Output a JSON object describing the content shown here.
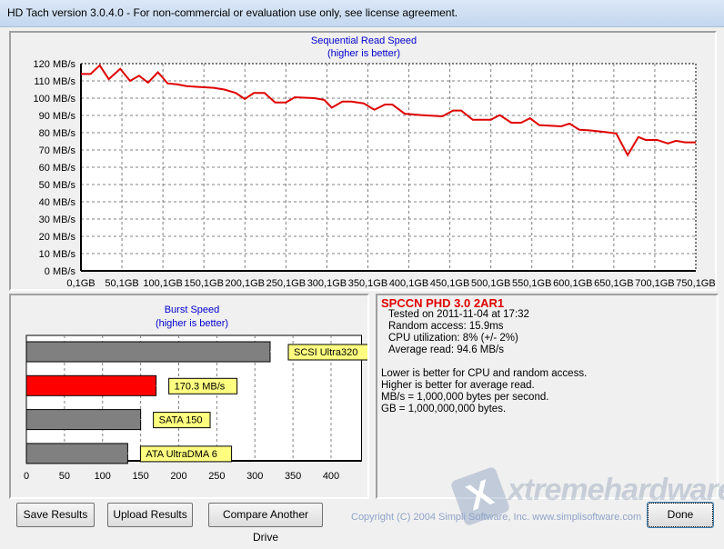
{
  "window": {
    "title": "HD Tach version 3.0.4.0  - For non-commercial or evaluation use only, see license agreement."
  },
  "chart_data": [
    {
      "type": "line",
      "title": "Sequential Read Speed",
      "subtitle": "(higher is better)",
      "ylim": [
        0,
        120
      ],
      "xlim": [
        0.1,
        750.1
      ],
      "yticks": [
        "0 MB/s",
        "10 MB/s",
        "20 MB/s",
        "30 MB/s",
        "40 MB/s",
        "50 MB/s",
        "60 MB/s",
        "70 MB/s",
        "80 MB/s",
        "90 MB/s",
        "100 MB/s",
        "110 MB/s",
        "120 MB/s"
      ],
      "xticks": [
        "0,1GB",
        "50,1GB",
        "100,1GB",
        "150,1GB",
        "200,1GB",
        "250,1GB",
        "300,1GB",
        "350,1GB",
        "400,1GB",
        "450,1GB",
        "500,1GB",
        "550,1GB",
        "600,1GB",
        "650,1GB",
        "700,1GB",
        "750,1GB"
      ],
      "grid": true,
      "color": "#e00000",
      "x": [
        0.1,
        12,
        23,
        34,
        48,
        60,
        71,
        82,
        94,
        106,
        117,
        129,
        143,
        162,
        175,
        189,
        200,
        211,
        224,
        237,
        250,
        261,
        285,
        297,
        306,
        319,
        330,
        345,
        358,
        371,
        380,
        395,
        415,
        441,
        454,
        464,
        478,
        500,
        511,
        525,
        537,
        548,
        559,
        586,
        596,
        608,
        620,
        637,
        653,
        667,
        680,
        689,
        703,
        716,
        726,
        737,
        750.1
      ],
      "y": [
        114,
        114,
        119,
        111,
        117,
        110,
        113,
        109,
        115,
        108.5,
        108,
        107,
        106.5,
        106,
        105,
        103,
        99.5,
        103,
        103,
        97.5,
        97.5,
        100.5,
        100,
        99,
        94.5,
        98,
        98,
        97,
        93.3,
        96.3,
        96.3,
        91,
        90.2,
        89.5,
        92.8,
        92.8,
        87.5,
        87.5,
        90.2,
        85.8,
        85.8,
        88.4,
        84.4,
        83.7,
        85.3,
        81.7,
        81.4,
        80.5,
        79.6,
        67,
        77.5,
        75.8,
        75.8,
        73.8,
        75.3,
        74.4,
        74.4
      ]
    },
    {
      "type": "bar",
      "orientation": "horizontal",
      "title": "Burst Speed",
      "subtitle": "(higher is better)",
      "xlim": [
        0,
        440
      ],
      "xticks": [
        "0",
        "50",
        "100",
        "150",
        "200",
        "250",
        "300",
        "350",
        "400"
      ],
      "grid": true,
      "categories": [
        "SCSI Ultra320",
        "170.3 MB/s",
        "SATA 150",
        "ATA UltraDMA 6"
      ],
      "values": [
        320,
        170.3,
        150,
        133
      ],
      "colors": [
        "#808080",
        "#ff0000",
        "#808080",
        "#808080"
      ],
      "label_bg": "#ffff80"
    }
  ],
  "info": {
    "drive": "SPCCN PHD 3.0 2AR1",
    "tested": "Tested on 2011-11-04 at 17:32",
    "random": "Random access: 15.9ms",
    "cpu": "CPU utilization: 8% (+/- 2%)",
    "avg": "Average read: 94.6 MB/s",
    "notes": [
      "Lower is better for CPU and random access.",
      "Higher is better for average read.",
      "MB/s = 1,000,000 bytes per second.",
      "GB = 1,000,000,000 bytes."
    ]
  },
  "buttons": {
    "save": "Save Results",
    "upload": "Upload Results",
    "compare": "Compare Another Drive",
    "done": "Done"
  },
  "copyright": "Copyright (C) 2004 Simpli Software, Inc. www.simplisoftware.com",
  "watermark": "xtremehardware.it"
}
